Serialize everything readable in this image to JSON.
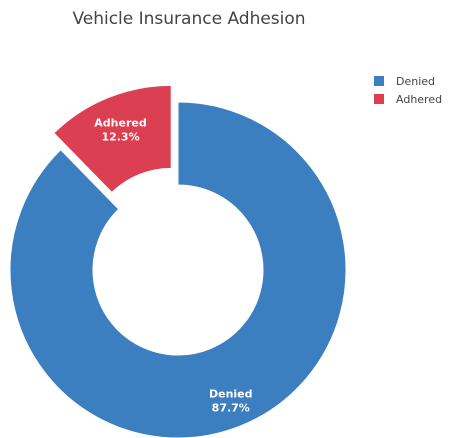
{
  "chart_data": {
    "type": "pie",
    "title": "Vehicle Insurance Adhesion",
    "hole": true,
    "slices": [
      {
        "label": "Denied",
        "value": 87.7,
        "percent_text": "87.7%",
        "color": "#3b7fc1",
        "pulled": false
      },
      {
        "label": "Adhered",
        "value": 12.3,
        "percent_text": "12.3%",
        "color": "#dc3e52",
        "pulled": true
      }
    ],
    "legend": {
      "placement": "top-right",
      "entries": [
        {
          "label": "Denied",
          "color": "#3b7fc1"
        },
        {
          "label": "Adhered",
          "color": "#dc3e52"
        }
      ]
    }
  }
}
